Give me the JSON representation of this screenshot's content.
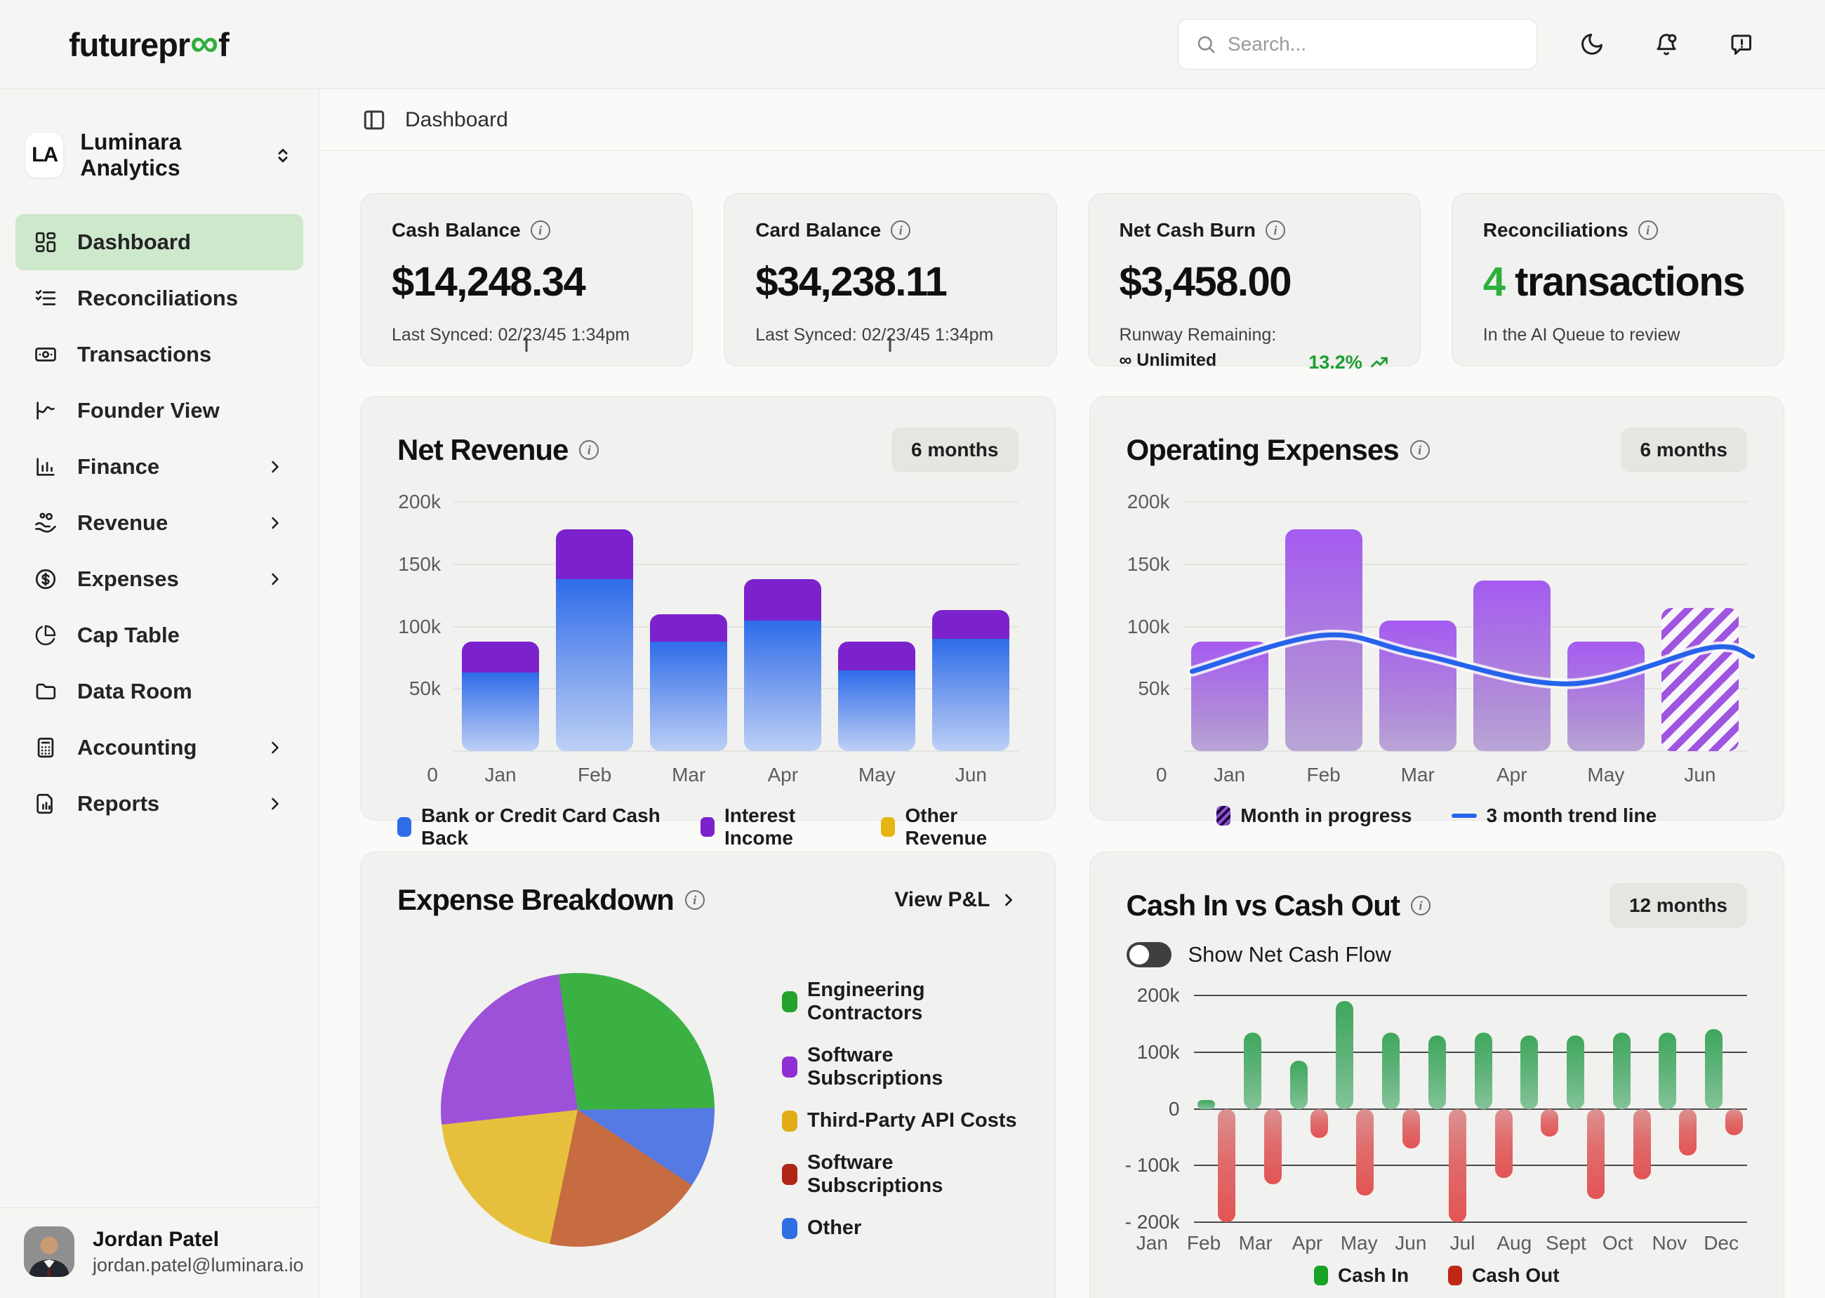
{
  "topbar": {
    "logo": {
      "prefix": "futurepr",
      "infinity": "∞",
      "suffix": "f"
    },
    "search": {
      "placeholder": "Search..."
    }
  },
  "sidebar": {
    "workspace": {
      "initials": "LA",
      "name": "Luminara Analytics"
    },
    "items": [
      {
        "label": "Dashboard",
        "icon": "dashboard",
        "active": true,
        "has_submenu": false
      },
      {
        "label": "Reconciliations",
        "icon": "reconciliations",
        "active": false,
        "has_submenu": false
      },
      {
        "label": "Transactions",
        "icon": "transactions",
        "active": false,
        "has_submenu": false
      },
      {
        "label": "Founder View",
        "icon": "founder-view",
        "active": false,
        "has_submenu": false
      },
      {
        "label": "Finance",
        "icon": "finance",
        "active": false,
        "has_submenu": true
      },
      {
        "label": "Revenue",
        "icon": "revenue",
        "active": false,
        "has_submenu": true
      },
      {
        "label": "Expenses",
        "icon": "expenses",
        "active": false,
        "has_submenu": true
      },
      {
        "label": "Cap Table",
        "icon": "cap-table",
        "active": false,
        "has_submenu": false
      },
      {
        "label": "Data Room",
        "icon": "data-room",
        "active": false,
        "has_submenu": false
      },
      {
        "label": "Accounting",
        "icon": "accounting",
        "active": false,
        "has_submenu": true
      },
      {
        "label": "Reports",
        "icon": "reports",
        "active": false,
        "has_submenu": true
      }
    ],
    "user": {
      "name": "Jordan Patel",
      "email": "jordan.patel@luminara.io"
    }
  },
  "breadcrumb": {
    "label": "Dashboard"
  },
  "stat_cards": [
    {
      "title": "Cash Balance",
      "value": "$14,248.34",
      "subtitle": "Last Synced: 02/23/45 1:34pm"
    },
    {
      "title": "Card Balance",
      "value": "$34,238.11",
      "subtitle": "Last Synced: 02/23/45 1:34pm"
    },
    {
      "title": "Net Cash Burn",
      "value": "$3,458.00",
      "runway_label": "Runway Remaining:",
      "runway_value": "∞ Unlimited",
      "delta": "13.2%",
      "delta_color": "#1e9e30"
    },
    {
      "title": "Reconciliations",
      "value_highlight": "4",
      "value_rest": " transactions",
      "subtitle": "In the AI Queue to review",
      "highlight_color": "#2fae3e"
    }
  ],
  "chart_data": [
    {
      "type": "bar",
      "title": "Net Revenue",
      "badge": "6 months",
      "categories": [
        "Jan",
        "Feb",
        "Mar",
        "Apr",
        "May",
        "Jun"
      ],
      "zero_label": "0",
      "yticks": [
        "200k",
        "150k",
        "100k",
        "50k"
      ],
      "ylim": [
        0,
        200000
      ],
      "unit": "k USD",
      "series": [
        {
          "name": "Bank or Credit Card Cash Back",
          "color": "#2e6ce9",
          "values": [
            63,
            138,
            88,
            105,
            65,
            90
          ]
        },
        {
          "name": "Interest Income",
          "color": "#7c22cd",
          "values": [
            25,
            40,
            22,
            33,
            23,
            23
          ]
        },
        {
          "name": "Other Revenue",
          "color": "#e7b512",
          "values": [
            0,
            0,
            0,
            0,
            0,
            0
          ]
        }
      ]
    },
    {
      "type": "bar",
      "title": "Operating Expenses",
      "badge": "6 months",
      "categories": [
        "Jan",
        "Feb",
        "Mar",
        "Apr",
        "May",
        "Jun"
      ],
      "zero_label": "0",
      "yticks": [
        "200k",
        "150k",
        "100k",
        "50k"
      ],
      "ylim": [
        0,
        200000
      ],
      "unit": "k USD",
      "values": [
        88,
        178,
        105,
        137,
        88,
        115
      ],
      "in_progress_index": 5,
      "trend_points": [
        {
          "m": -0.4,
          "v": 64
        },
        {
          "m": 1,
          "v": 93
        },
        {
          "m": 2,
          "v": 78
        },
        {
          "m": 3.6,
          "v": 54
        },
        {
          "m": 5.1,
          "v": 83
        },
        {
          "m": 5.55,
          "v": 76
        }
      ],
      "legend": [
        {
          "label": "Month in progress",
          "swatch": "hatch"
        },
        {
          "label": "3 month trend line",
          "swatch": "line",
          "color": "#2563eb"
        }
      ]
    },
    {
      "type": "pie",
      "title": "Expense Breakdown",
      "link_label": "View P&L",
      "slices": [
        {
          "label": "Engineering Contractors",
          "value": 27,
          "slice_color": "#3bb144",
          "swatch_color": "#23a32b"
        },
        {
          "label": "Software Subscriptions",
          "value": 24.5,
          "slice_color": "#9d50d8",
          "swatch_color": "#8e2fd6"
        },
        {
          "label": "Third-Party API Costs",
          "value": 20,
          "slice_color": "#e6c03c",
          "swatch_color": "#e2ac17"
        },
        {
          "label": "Software Subscriptions",
          "value": 19,
          "slice_color": "#c76b41",
          "swatch_color": "#b12517"
        },
        {
          "label": "Other",
          "value": 9.5,
          "slice_color": "#567ae4",
          "swatch_color": "#2f6fe4"
        }
      ],
      "draw_sequence": [
        0,
        4,
        3,
        2,
        1
      ],
      "start_angle_deg": -8
    },
    {
      "type": "bar",
      "title": "Cash In vs Cash Out",
      "badge": "12 months",
      "toggle_label": "Show Net Cash Flow",
      "toggle_on": false,
      "categories": [
        "Jan",
        "Feb",
        "Mar",
        "Apr",
        "May",
        "Jun",
        "Jul",
        "Aug",
        "Sept",
        "Oct",
        "Nov",
        "Dec"
      ],
      "yticks": [
        "200k",
        "100k",
        "0",
        "- 100k",
        "- 200k"
      ],
      "ylim": [
        -200000,
        200000
      ],
      "unit": "k USD",
      "series": [
        {
          "name": "Cash In",
          "color": "#17a327",
          "values": [
            15,
            135,
            85,
            190,
            135,
            130,
            135,
            130,
            130,
            135,
            135,
            140
          ]
        },
        {
          "name": "Cash Out",
          "color": "#bf2817",
          "values": [
            -200,
            -133,
            -51,
            -153,
            -70,
            -200,
            -122,
            -49,
            -159,
            -124,
            -82,
            -47
          ]
        }
      ]
    }
  ]
}
